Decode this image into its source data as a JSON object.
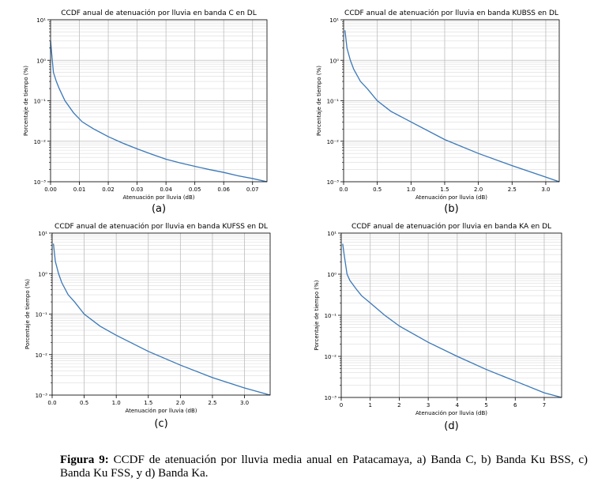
{
  "figure": {
    "caption_label": "Figura 9:",
    "caption_text": " CCDF de atenuación por lluvia media anual en Patacamaya, a) Banda C, b) Banda Ku BSS, c) Banda Ku FSS, y d) Banda Ka."
  },
  "chart_data": [
    {
      "type": "line",
      "panel_label": "(a)",
      "title": "CCDF anual de atenuación por lluvia en banda C en DL",
      "xlabel": "Atenuación por lluvia (dB)",
      "ylabel": "Porcentaje de tiempo (%)",
      "xlim": [
        0,
        0.075
      ],
      "ylim": [
        0.001,
        10
      ],
      "yscale": "log",
      "grid": true,
      "x_ticks": [
        0,
        0.01,
        0.02,
        0.03,
        0.04,
        0.05,
        0.06,
        0.07
      ],
      "x_tick_labels": [
        "0.00",
        "0.01",
        "0.02",
        "0.03",
        "0.04",
        "0.05",
        "0.06",
        "0.07"
      ],
      "y_tick_labels": [
        "10⁻³",
        "10⁻²",
        "10⁻¹",
        "10⁰",
        "10¹"
      ],
      "line_color": "#3a78b8",
      "series": [
        {
          "x": [
            0.0,
            0.0005,
            0.001,
            0.002,
            0.003,
            0.005,
            0.008,
            0.011,
            0.015,
            0.02,
            0.025,
            0.03,
            0.035,
            0.04,
            0.045,
            0.05,
            0.055,
            0.06,
            0.065,
            0.07,
            0.075
          ],
          "y": [
            3.0,
            1.2,
            0.5,
            0.3,
            0.2,
            0.1,
            0.05,
            0.03,
            0.02,
            0.013,
            0.009,
            0.0065,
            0.0048,
            0.0036,
            0.0029,
            0.0024,
            0.002,
            0.0017,
            0.0014,
            0.0012,
            0.001
          ]
        }
      ]
    },
    {
      "type": "line",
      "panel_label": "(b)",
      "title": "CCDF anual de atenuación por lluvia en banda KUBSS en DL",
      "xlabel": "Atenuación por lluvia (dB)",
      "ylabel": "Porcentaje de tiempo (%)",
      "xlim": [
        0,
        3.2
      ],
      "ylim": [
        0.001,
        10
      ],
      "yscale": "log",
      "grid": true,
      "x_ticks": [
        0,
        0.5,
        1.0,
        1.5,
        2.0,
        2.5,
        3.0
      ],
      "x_tick_labels": [
        "0.0",
        "0.5",
        "1.0",
        "1.5",
        "2.0",
        "2.5",
        "3.0"
      ],
      "y_tick_labels": [
        "10⁻³",
        "10⁻²",
        "10⁻¹",
        "10⁰",
        "10¹"
      ],
      "line_color": "#3a78b8",
      "series": [
        {
          "x": [
            0.02,
            0.05,
            0.1,
            0.15,
            0.25,
            0.35,
            0.5,
            0.7,
            1.0,
            1.5,
            2.0,
            2.5,
            3.0,
            3.2
          ],
          "y": [
            5.5,
            2.0,
            1.0,
            0.6,
            0.3,
            0.2,
            0.1,
            0.055,
            0.03,
            0.011,
            0.005,
            0.0025,
            0.0013,
            0.001
          ]
        }
      ]
    },
    {
      "type": "line",
      "panel_label": "(c)",
      "title": "CCDF anual de atenuación por lluvia en banda KUFSS en DL",
      "xlabel": "Atenuación por lluvia (dB)",
      "ylabel": "Porcentaje de tiempo (%)",
      "xlim": [
        0,
        3.4
      ],
      "ylim": [
        0.001,
        10
      ],
      "yscale": "log",
      "grid": true,
      "x_ticks": [
        0,
        0.5,
        1.0,
        1.5,
        2.0,
        2.5,
        3.0
      ],
      "x_tick_labels": [
        "0.0",
        "0.5",
        "1.0",
        "1.5",
        "2.0",
        "2.5",
        "3.0"
      ],
      "y_tick_labels": [
        "10⁻³",
        "10⁻²",
        "10⁻¹",
        "10⁰",
        "10¹"
      ],
      "line_color": "#3a78b8",
      "series": [
        {
          "x": [
            0.02,
            0.05,
            0.1,
            0.15,
            0.25,
            0.35,
            0.5,
            0.75,
            1.0,
            1.5,
            2.0,
            2.5,
            3.0,
            3.4
          ],
          "y": [
            5.5,
            2.0,
            1.0,
            0.6,
            0.3,
            0.2,
            0.1,
            0.05,
            0.03,
            0.012,
            0.0055,
            0.0027,
            0.0015,
            0.001
          ]
        }
      ]
    },
    {
      "type": "line",
      "panel_label": "(d)",
      "title": "CCDF anual de atenuación por lluvia en banda KA en DL",
      "xlabel": "Atenuación por lluvia (dB)",
      "ylabel": "Porcentaje de tiempo (%)",
      "xlim": [
        0,
        7.6
      ],
      "ylim": [
        0.001,
        10
      ],
      "yscale": "log",
      "grid": true,
      "x_ticks": [
        0,
        1,
        2,
        3,
        4,
        5,
        6,
        7
      ],
      "x_tick_labels": [
        "0",
        "1",
        "2",
        "3",
        "4",
        "5",
        "6",
        "7"
      ],
      "y_tick_labels": [
        "10⁻³",
        "10⁻²",
        "10⁻¹",
        "10⁰",
        "10¹"
      ],
      "line_color": "#3a78b8",
      "series": [
        {
          "x": [
            0.05,
            0.1,
            0.2,
            0.3,
            0.5,
            0.7,
            1.0,
            1.5,
            2.0,
            3.0,
            4.0,
            5.0,
            6.0,
            7.0,
            7.6
          ],
          "y": [
            5.5,
            3.0,
            1.0,
            0.7,
            0.45,
            0.3,
            0.2,
            0.1,
            0.055,
            0.022,
            0.01,
            0.0048,
            0.0025,
            0.0013,
            0.001
          ]
        }
      ]
    }
  ]
}
